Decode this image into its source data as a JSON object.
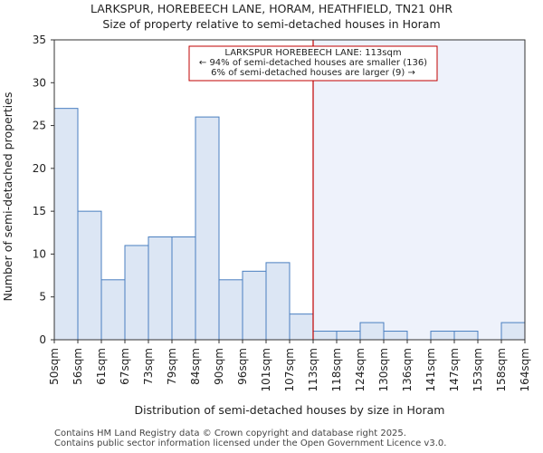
{
  "chart_data": {
    "type": "bar",
    "title": "LARKSPUR, HOREBEECH LANE, HORAM, HEATHFIELD, TN21 0HR",
    "subtitle": "Size of property relative to semi-detached houses in Horam",
    "xlabel": "Distribution of semi-detached houses by size in Horam",
    "ylabel": "Number of semi-detached properties",
    "ylim": [
      0,
      35
    ],
    "yticks": [
      0,
      5,
      10,
      15,
      20,
      25,
      30,
      35
    ],
    "bin_edges_labels": [
      "50sqm",
      "56sqm",
      "61sqm",
      "67sqm",
      "73sqm",
      "79sqm",
      "84sqm",
      "90sqm",
      "96sqm",
      "101sqm",
      "107sqm",
      "113sqm",
      "118sqm",
      "124sqm",
      "130sqm",
      "136sqm",
      "141sqm",
      "147sqm",
      "153sqm",
      "158sqm",
      "164sqm"
    ],
    "values": [
      27,
      15,
      7,
      11,
      12,
      12,
      26,
      7,
      8,
      9,
      3,
      1,
      1,
      2,
      1,
      0,
      1,
      1,
      0,
      2
    ],
    "property_bin_index": 11,
    "bar_color": "#dce6f4",
    "bar_edge_color": "#4a7fc0",
    "marker_color": "#c00000",
    "highlight_region_color": "#eef2fb",
    "annotation": {
      "line1": "LARKSPUR HOREBEECH LANE: 113sqm",
      "line2": "← 94% of semi-detached houses are smaller (136)",
      "line3": "6% of semi-detached houses are larger (9) →"
    }
  },
  "footer": {
    "line1": "Contains HM Land Registry data © Crown copyright and database right 2025.",
    "line2": "Contains public sector information licensed under the Open Government Licence v3.0."
  }
}
